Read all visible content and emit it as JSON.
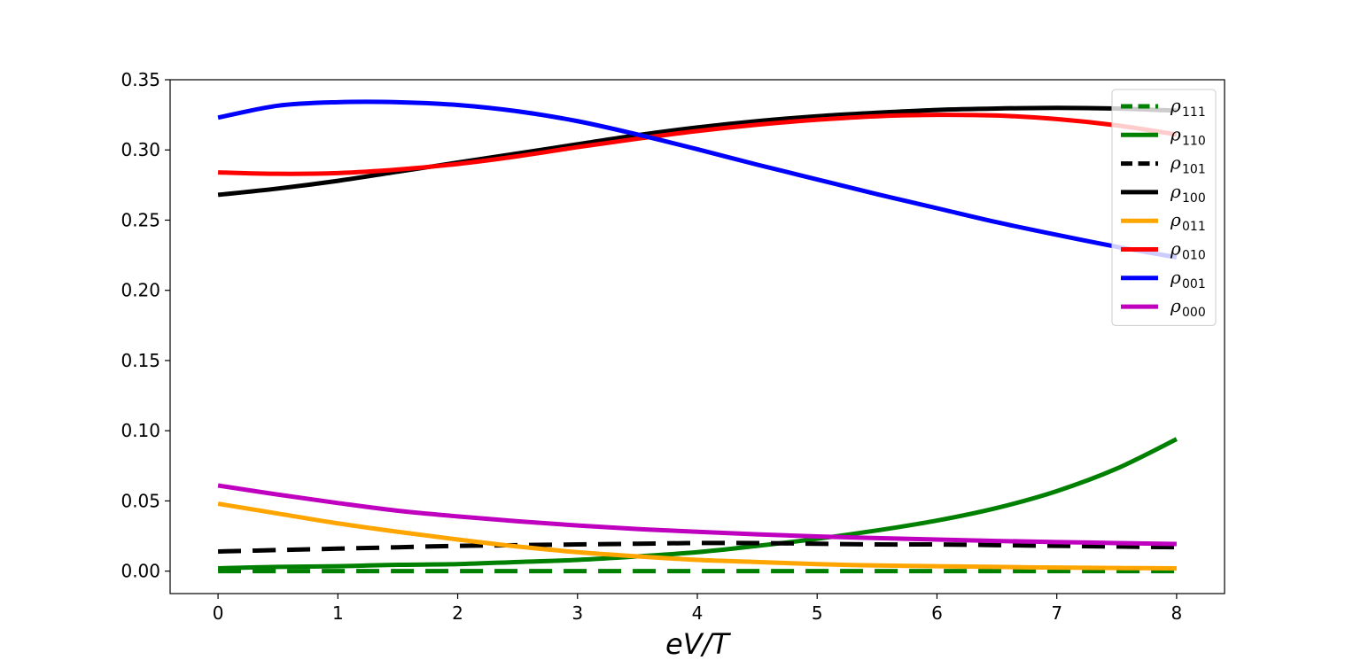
{
  "chart_data": {
    "type": "line",
    "title": "",
    "xlabel": "eV/T",
    "ylabel": "",
    "xlim": [
      -0.4,
      8.4
    ],
    "ylim": [
      -0.016,
      0.35
    ],
    "x_ticks": [
      0,
      1,
      2,
      3,
      4,
      5,
      6,
      7,
      8
    ],
    "x_tick_labels": [
      "0",
      "1",
      "2",
      "3",
      "4",
      "5",
      "6",
      "7",
      "8"
    ],
    "y_ticks": [
      0.0,
      0.05,
      0.1,
      0.15,
      0.2,
      0.25,
      0.3,
      0.35
    ],
    "y_tick_labels": [
      "0.00",
      "0.05",
      "0.10",
      "0.15",
      "0.20",
      "0.25",
      "0.30",
      "0.35"
    ],
    "grid": false,
    "legend_position": "top-right",
    "x": [
      0,
      0.5,
      1,
      1.5,
      2,
      2.5,
      3,
      3.5,
      4,
      4.5,
      5,
      5.5,
      6,
      6.5,
      7,
      7.5,
      8
    ],
    "series": [
      {
        "name": "ρ",
        "sub": "111",
        "color": "#008000",
        "dash": "dashed",
        "values": [
          0.0,
          0.0,
          0.0,
          0.0,
          0.0,
          0.0,
          0.0,
          0.0,
          0.0,
          0.0,
          0.0,
          0.0,
          0.0,
          0.0,
          0.0,
          0.0,
          0.0
        ]
      },
      {
        "name": "ρ",
        "sub": "110",
        "color": "#008000",
        "dash": "solid",
        "values": [
          0.002,
          0.003,
          0.0035,
          0.0045,
          0.005,
          0.0065,
          0.008,
          0.0105,
          0.0135,
          0.018,
          0.023,
          0.029,
          0.036,
          0.045,
          0.057,
          0.073,
          0.094
        ]
      },
      {
        "name": "ρ",
        "sub": "101",
        "color": "#000000",
        "dash": "dashed",
        "values": [
          0.014,
          0.015,
          0.016,
          0.017,
          0.018,
          0.0185,
          0.019,
          0.0195,
          0.02,
          0.02,
          0.0195,
          0.019,
          0.019,
          0.0185,
          0.018,
          0.0175,
          0.017
        ]
      },
      {
        "name": "ρ",
        "sub": "100",
        "color": "#000000",
        "dash": "solid",
        "values": [
          0.268,
          0.2725,
          0.278,
          0.2845,
          0.291,
          0.2975,
          0.304,
          0.3105,
          0.316,
          0.3205,
          0.324,
          0.3265,
          0.3285,
          0.3295,
          0.33,
          0.3295,
          0.328
        ]
      },
      {
        "name": "ρ",
        "sub": "011",
        "color": "#FFA500",
        "dash": "solid",
        "values": [
          0.048,
          0.041,
          0.034,
          0.028,
          0.0225,
          0.0175,
          0.0135,
          0.0105,
          0.008,
          0.0065,
          0.005,
          0.004,
          0.0035,
          0.003,
          0.0025,
          0.0022,
          0.002
        ]
      },
      {
        "name": "ρ",
        "sub": "010",
        "color": "#FF0000",
        "dash": "solid",
        "values": [
          0.284,
          0.283,
          0.2835,
          0.286,
          0.29,
          0.2955,
          0.302,
          0.308,
          0.3135,
          0.318,
          0.3215,
          0.324,
          0.325,
          0.3245,
          0.322,
          0.3175,
          0.311
        ]
      },
      {
        "name": "ρ",
        "sub": "001",
        "color": "#0000FF",
        "dash": "solid",
        "values": [
          0.323,
          0.3315,
          0.334,
          0.334,
          0.332,
          0.3275,
          0.3205,
          0.311,
          0.3005,
          0.2895,
          0.279,
          0.2685,
          0.2585,
          0.2485,
          0.2395,
          0.231,
          0.2235
        ]
      },
      {
        "name": "ρ",
        "sub": "000",
        "color": "#BF00BF",
        "dash": "solid",
        "values": [
          0.061,
          0.0545,
          0.0485,
          0.043,
          0.039,
          0.0355,
          0.0325,
          0.03,
          0.028,
          0.0262,
          0.0247,
          0.0235,
          0.0225,
          0.0215,
          0.0207,
          0.02,
          0.0193
        ]
      }
    ]
  }
}
